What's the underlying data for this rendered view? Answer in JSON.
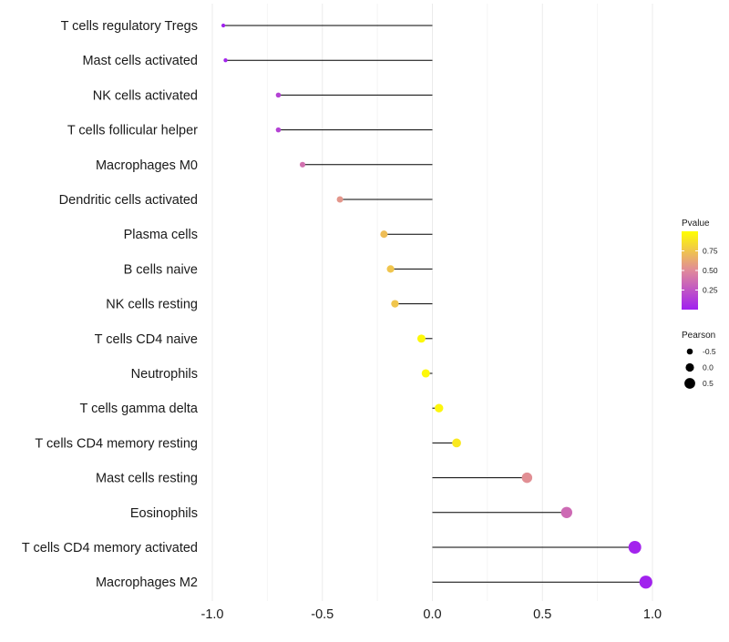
{
  "chart_data": {
    "type": "lollipop",
    "title": "",
    "xlabel": "",
    "ylabel": "",
    "xlim": [
      -1.0,
      1.0
    ],
    "x_ticks": [
      -1.0,
      -0.5,
      0.0,
      0.5,
      1.0
    ],
    "x_tick_labels": [
      "-1.0",
      "-0.5",
      "0.0",
      "0.5",
      "1.0"
    ],
    "baseline": 0,
    "categories": [
      "T cells regulatory  Tregs",
      "Mast cells activated",
      "NK cells activated",
      "T cells follicular helper",
      "Macrophages M0",
      "Dendritic cells activated",
      "Plasma cells",
      "B cells naive",
      "NK cells resting",
      "T cells CD4 naive",
      "Neutrophils",
      "T cells gamma delta",
      "T cells CD4 memory resting",
      "Mast cells resting",
      "Eosinophils",
      "T cells CD4 memory activated",
      "Macrophages M2"
    ],
    "values": [
      -0.95,
      -0.94,
      -0.7,
      -0.7,
      -0.59,
      -0.42,
      -0.22,
      -0.19,
      -0.17,
      -0.05,
      -0.03,
      0.03,
      0.11,
      0.43,
      0.61,
      0.92,
      0.97
    ],
    "pvalues": [
      0.01,
      0.02,
      0.16,
      0.16,
      0.38,
      0.55,
      0.72,
      0.75,
      0.75,
      0.97,
      0.97,
      0.96,
      0.9,
      0.52,
      0.35,
      0.02,
      0.01
    ],
    "color_legend": {
      "title": "Pvalue",
      "ticks": [
        0.25,
        0.5,
        0.75
      ],
      "tick_labels": [
        "0.25",
        "0.50",
        "0.75"
      ],
      "range": [
        0.0,
        1.0
      ],
      "low_color": "#a020f0",
      "mid_color": "#e08a9a",
      "high_color": "#ffff00"
    },
    "size_legend": {
      "title": "Pearson",
      "values": [
        -0.5,
        0.0,
        0.5
      ],
      "labels": [
        "-0.5",
        "0.0",
        "0.5"
      ]
    },
    "grid": true,
    "legend_position": "right"
  }
}
